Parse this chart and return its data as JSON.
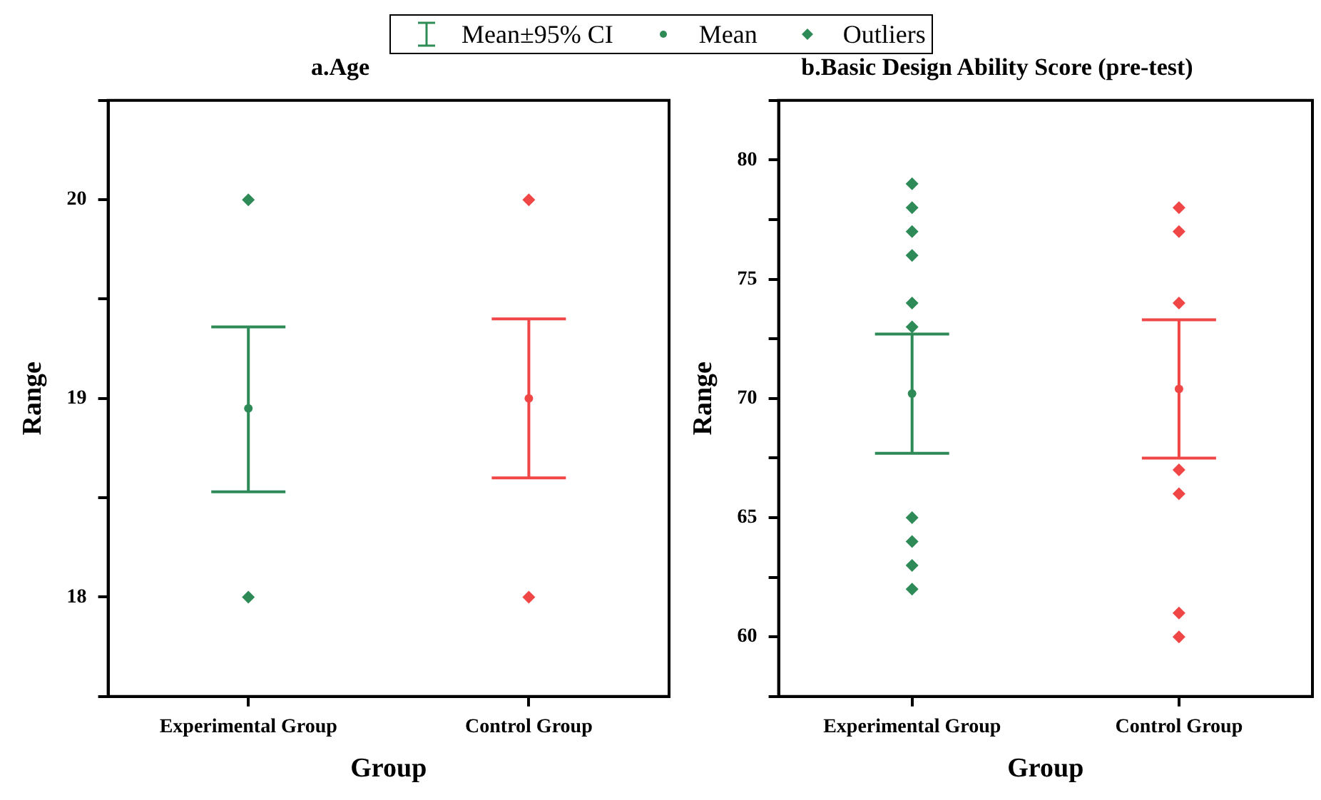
{
  "chart_data": [
    {
      "type": "scatter",
      "title": "a.Age",
      "xlabel": "Group",
      "ylabel": "Range",
      "categories": [
        "Experimental Group",
        "Control Group"
      ],
      "ylim": [
        17.5,
        20.5
      ],
      "yticks": [
        {
          "value": 17.5,
          "label": null
        },
        18,
        {
          "value": 18.5,
          "label": null
        },
        19,
        {
          "value": 19.5,
          "label": null
        },
        20,
        {
          "value": 20.5,
          "label": null
        }
      ],
      "grid": false,
      "legend": "top",
      "annotations": [
        "Mean±95%  CI"
      ],
      "series": [
        {
          "name": "Mean",
          "marker": "circle",
          "colors": [
            "#2e8b57",
            "#f04646"
          ],
          "values": [
            18.95,
            19.0
          ],
          "errors": [
            [
              18.53,
              19.36
            ],
            [
              18.6,
              19.4
            ]
          ]
        },
        {
          "name": "Outliers",
          "marker": "diamond",
          "x": [
            "Experimental Group",
            "Experimental Group",
            "Control Group",
            "Control Group"
          ],
          "values": [
            20,
            18,
            20,
            18
          ],
          "colors": [
            "#2e8b57",
            "#2e8b57",
            "#f04646",
            "#f04646"
          ]
        }
      ]
    },
    {
      "type": "scatter",
      "title": "b.Basic Design Ability Score (pre-test)",
      "xlabel": "Group",
      "ylabel": "Range",
      "categories": [
        "Experimental Group",
        "Control Group"
      ],
      "ylim": [
        57.5,
        82.5
      ],
      "yticks": [
        {
          "value": 57.5,
          "label": null
        },
        60,
        {
          "value": 62.5,
          "label": null
        },
        65,
        {
          "value": 67.5,
          "label": null
        },
        70,
        {
          "value": 72.5,
          "label": null
        },
        75,
        {
          "value": 77.5,
          "label": null
        },
        80,
        {
          "value": 82.5,
          "label": null
        }
      ],
      "grid": false,
      "series": [
        {
          "marker": "circle",
          "colors": [
            "#2e8b57",
            "#f04646"
          ],
          "values": [
            70.2,
            70.4
          ],
          "errors": [
            [
              67.7,
              72.7
            ],
            [
              67.5,
              73.3
            ]
          ]
        },
        {
          "marker": "diamond",
          "x": [
            "Experimental Group",
            "Experimental Group",
            "Experimental Group",
            "Experimental Group",
            "Experimental Group",
            "Experimental Group",
            "Experimental Group",
            "Experimental Group",
            "Experimental Group",
            "Experimental Group",
            "Control Group",
            "Control Group",
            "Control Group",
            "Control Group",
            "Control Group",
            "Control Group",
            "Control Group"
          ],
          "values": [
            79,
            78,
            77,
            76,
            74,
            73,
            65,
            64,
            63,
            62,
            78,
            77,
            74,
            67,
            66,
            61,
            60
          ],
          "colors": [
            "#2e8b57",
            "#2e8b57",
            "#2e8b57",
            "#2e8b57",
            "#2e8b57",
            "#2e8b57",
            "#2e8b57",
            "#2e8b57",
            "#2e8b57",
            "#2e8b57",
            "#f04646",
            "#f04646",
            "#f04646",
            "#f04646",
            "#f04646",
            "#f04646",
            "#f04646"
          ]
        }
      ]
    }
  ]
}
